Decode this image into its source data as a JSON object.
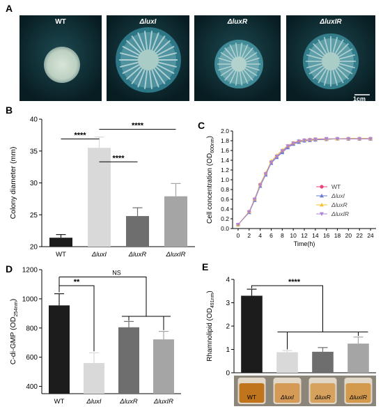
{
  "panel_a": {
    "label": "A",
    "plates": [
      {
        "name": "WT",
        "italic": false
      },
      {
        "name": "ΔluxI",
        "italic": true
      },
      {
        "name": "ΔluxR",
        "italic": true
      },
      {
        "name": "ΔluxIR",
        "italic": true
      }
    ],
    "scale_bar": "1cm"
  },
  "chart_data": [
    {
      "panel": "B",
      "type": "bar",
      "ylabel": "Colony diameter (mm)",
      "categories": [
        "WT",
        "ΔluxI",
        "ΔluxR",
        "ΔluxIR"
      ],
      "values": [
        21.4,
        35.5,
        24.8,
        27.9
      ],
      "errors": [
        0.5,
        1.7,
        1.3,
        2.0
      ],
      "colors": [
        "#1c1c1c",
        "#d9d9d9",
        "#6e6e6e",
        "#a5a5a5"
      ],
      "ylim": [
        20,
        40
      ],
      "yticks": [
        20,
        25,
        30,
        35,
        40
      ],
      "significance": [
        {
          "from": 0,
          "to": 1,
          "label": "****"
        },
        {
          "from": 1,
          "to": 2,
          "label": "****"
        },
        {
          "from": 1,
          "to": 3,
          "label": "****"
        }
      ]
    },
    {
      "panel": "C",
      "type": "line",
      "xlabel": "Time(h)",
      "ylabel_main": "Cell concentration (OD",
      "ylabel_sub": "600nm",
      "ylabel_end": ")",
      "x": [
        0,
        2,
        3,
        4,
        5,
        6,
        7,
        8,
        9,
        10,
        11,
        12,
        13,
        14,
        16,
        18,
        20,
        22,
        24
      ],
      "xticks": [
        0,
        2,
        4,
        6,
        8,
        10,
        12,
        14,
        16,
        18,
        20,
        22,
        24
      ],
      "xlim": [
        -1,
        25
      ],
      "ylim": [
        0,
        2.0
      ],
      "yticks": [
        0.0,
        0.2,
        0.4,
        0.6,
        0.8,
        1.0,
        1.2,
        1.4,
        1.6,
        1.8,
        2.0
      ],
      "legend_position": "right",
      "series": [
        {
          "name": "WT",
          "italic": false,
          "color": "#e8457a",
          "marker": "circle",
          "values": [
            0.08,
            0.34,
            0.6,
            0.9,
            1.12,
            1.36,
            1.47,
            1.57,
            1.67,
            1.74,
            1.78,
            1.8,
            1.81,
            1.82,
            1.83,
            1.84,
            1.84,
            1.84,
            1.84
          ]
        },
        {
          "name": "ΔluxI",
          "italic": true,
          "color": "#6a7fcf",
          "marker": "triangle-up",
          "values": [
            0.08,
            0.33,
            0.58,
            0.87,
            1.1,
            1.34,
            1.46,
            1.56,
            1.66,
            1.73,
            1.77,
            1.8,
            1.81,
            1.82,
            1.83,
            1.84,
            1.84,
            1.84,
            1.84
          ]
        },
        {
          "name": "ΔluxR",
          "italic": true,
          "color": "#f2c530",
          "marker": "triangle-up",
          "values": [
            0.08,
            0.35,
            0.61,
            0.91,
            1.14,
            1.38,
            1.5,
            1.61,
            1.7,
            1.76,
            1.8,
            1.82,
            1.83,
            1.84,
            1.84,
            1.84,
            1.85,
            1.85,
            1.85
          ]
        },
        {
          "name": "ΔluxIR",
          "italic": true,
          "color": "#b085d6",
          "marker": "triangle-down",
          "values": [
            0.08,
            0.34,
            0.6,
            0.89,
            1.12,
            1.36,
            1.48,
            1.59,
            1.69,
            1.75,
            1.79,
            1.81,
            1.82,
            1.83,
            1.84,
            1.84,
            1.84,
            1.84,
            1.84
          ]
        }
      ]
    },
    {
      "panel": "D",
      "type": "bar",
      "ylabel_main": "C-di-GMP (OD",
      "ylabel_sub": "254nm",
      "ylabel_end": ")",
      "categories": [
        "WT",
        "ΔluxI",
        "ΔluxR",
        "ΔluxIR"
      ],
      "values": [
        955,
        560,
        805,
        722
      ],
      "errors": [
        80,
        70,
        40,
        55
      ],
      "colors": [
        "#1c1c1c",
        "#d9d9d9",
        "#6e6e6e",
        "#a5a5a5"
      ],
      "ylim": [
        350,
        1200
      ],
      "yticks": [
        400,
        600,
        800,
        1000,
        1200
      ],
      "significance": [
        {
          "from": 0,
          "to": 1,
          "label": "**"
        },
        {
          "from": 0,
          "to": [
            2,
            3
          ],
          "label": "NS"
        }
      ]
    },
    {
      "panel": "E",
      "type": "bar",
      "ylabel_main": "Rhamnolipid (OD",
      "ylabel_sub": "491nm",
      "ylabel_end": ")",
      "categories": [
        "WT",
        "ΔluxI",
        "ΔluxR",
        "ΔluxIR"
      ],
      "values": [
        3.3,
        0.88,
        0.9,
        1.25
      ],
      "errors": [
        0.28,
        0.07,
        0.18,
        0.28
      ],
      "colors": [
        "#1c1c1c",
        "#d9d9d9",
        "#6e6e6e",
        "#a5a5a5"
      ],
      "ylim": [
        0,
        4
      ],
      "yticks": [
        0,
        1,
        2,
        3,
        4
      ],
      "significance": [
        {
          "from": 0,
          "to": [
            1,
            2,
            3
          ],
          "label": "****"
        }
      ]
    }
  ],
  "panel_labels": {
    "b": "B",
    "c": "C",
    "d": "D",
    "e": "E"
  }
}
